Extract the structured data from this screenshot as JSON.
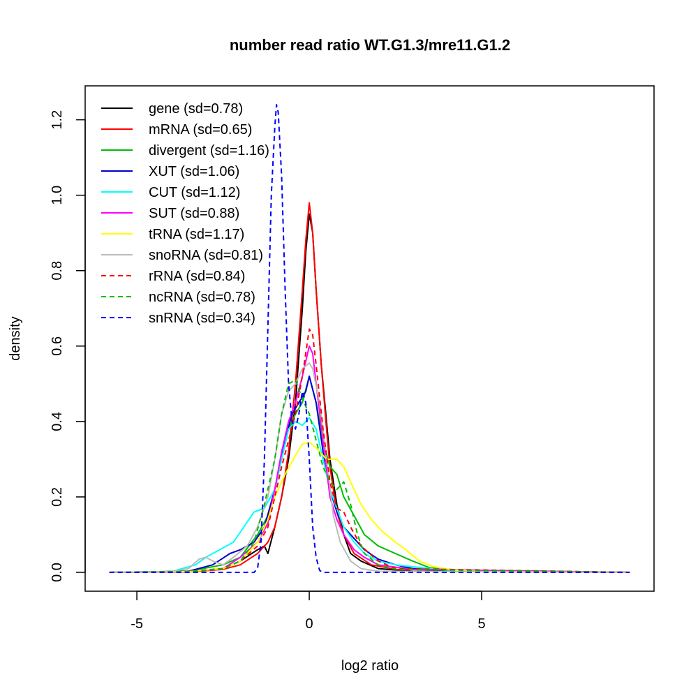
{
  "chart_data": {
    "type": "line",
    "title": "number read ratio WT.G1.3/mre11.G1.2",
    "xlabel": "log2 ratio",
    "ylabel": "density",
    "xlim": [
      -6.5,
      10
    ],
    "ylim": [
      -0.05,
      1.29
    ],
    "xticks": [
      -5,
      0,
      5
    ],
    "xtick_labels": [
      "-5",
      "0",
      "5"
    ],
    "yticks": [
      0,
      0.2,
      0.4,
      0.6,
      0.8,
      1.0,
      1.2
    ],
    "ytick_labels": [
      "0.0",
      "0.2",
      "0.4",
      "0.6",
      "0.8",
      "1.0",
      "1.2"
    ],
    "legend_position": "top-left",
    "series": [
      {
        "name": "gene (sd=0.78)",
        "color": "#000000",
        "dash": "solid",
        "points": [
          [
            -5.8,
            0
          ],
          [
            -3.5,
            0.002
          ],
          [
            -2.5,
            0.01
          ],
          [
            -2,
            0.03
          ],
          [
            -1.5,
            0.06
          ],
          [
            -1.3,
            0.07
          ],
          [
            -1.2,
            0.05
          ],
          [
            -1,
            0.12
          ],
          [
            -0.8,
            0.2
          ],
          [
            -0.6,
            0.3
          ],
          [
            -0.4,
            0.45
          ],
          [
            -0.2,
            0.7
          ],
          [
            -0.1,
            0.85
          ],
          [
            0,
            0.95
          ],
          [
            0.1,
            0.9
          ],
          [
            0.2,
            0.75
          ],
          [
            0.35,
            0.55
          ],
          [
            0.5,
            0.4
          ],
          [
            0.6,
            0.3
          ],
          [
            0.8,
            0.18
          ],
          [
            1,
            0.1
          ],
          [
            1.2,
            0.05
          ],
          [
            1.5,
            0.03
          ],
          [
            2,
            0.01
          ],
          [
            3,
            0.003
          ],
          [
            9.3,
            0
          ]
        ]
      },
      {
        "name": "mRNA (sd=0.65)",
        "color": "#ff0000",
        "dash": "solid",
        "points": [
          [
            -5.8,
            0
          ],
          [
            -3.5,
            0.001
          ],
          [
            -2.5,
            0.008
          ],
          [
            -2,
            0.02
          ],
          [
            -1.5,
            0.05
          ],
          [
            -1.2,
            0.08
          ],
          [
            -1,
            0.12
          ],
          [
            -0.8,
            0.2
          ],
          [
            -0.6,
            0.32
          ],
          [
            -0.4,
            0.5
          ],
          [
            -0.2,
            0.75
          ],
          [
            -0.1,
            0.88
          ],
          [
            0,
            0.98
          ],
          [
            0.1,
            0.9
          ],
          [
            0.2,
            0.75
          ],
          [
            0.35,
            0.55
          ],
          [
            0.5,
            0.38
          ],
          [
            0.6,
            0.28
          ],
          [
            0.8,
            0.16
          ],
          [
            1,
            0.1
          ],
          [
            1.3,
            0.05
          ],
          [
            1.8,
            0.02
          ],
          [
            2.5,
            0.008
          ],
          [
            9.3,
            0
          ]
        ]
      },
      {
        "name": "divergent (sd=1.16)",
        "color": "#00bb00",
        "dash": "solid",
        "points": [
          [
            -5.8,
            0
          ],
          [
            -3.5,
            0.003
          ],
          [
            -2.5,
            0.02
          ],
          [
            -2,
            0.04
          ],
          [
            -1.5,
            0.1
          ],
          [
            -1.2,
            0.15
          ],
          [
            -1,
            0.22
          ],
          [
            -0.8,
            0.3
          ],
          [
            -0.6,
            0.38
          ],
          [
            -0.4,
            0.42
          ],
          [
            -0.2,
            0.45
          ],
          [
            0,
            0.52
          ],
          [
            0.2,
            0.45
          ],
          [
            0.4,
            0.35
          ],
          [
            0.6,
            0.28
          ],
          [
            0.8,
            0.26
          ],
          [
            1,
            0.2
          ],
          [
            1.3,
            0.15
          ],
          [
            1.6,
            0.1
          ],
          [
            2,
            0.07
          ],
          [
            2.5,
            0.05
          ],
          [
            3,
            0.03
          ],
          [
            3.5,
            0.012
          ],
          [
            4.5,
            0.005
          ],
          [
            9.3,
            0
          ]
        ]
      },
      {
        "name": "XUT (sd=1.06)",
        "color": "#0000cc",
        "dash": "solid",
        "points": [
          [
            -5.8,
            0
          ],
          [
            -3.5,
            0.003
          ],
          [
            -2.8,
            0.02
          ],
          [
            -2.3,
            0.05
          ],
          [
            -2,
            0.06
          ],
          [
            -1.6,
            0.08
          ],
          [
            -1.3,
            0.12
          ],
          [
            -1,
            0.22
          ],
          [
            -0.7,
            0.35
          ],
          [
            -0.5,
            0.42
          ],
          [
            -0.3,
            0.45
          ],
          [
            -0.1,
            0.48
          ],
          [
            0,
            0.52
          ],
          [
            0.2,
            0.45
          ],
          [
            0.4,
            0.32
          ],
          [
            0.6,
            0.22
          ],
          [
            0.8,
            0.16
          ],
          [
            1,
            0.12
          ],
          [
            1.3,
            0.09
          ],
          [
            1.6,
            0.06
          ],
          [
            2,
            0.035
          ],
          [
            2.5,
            0.02
          ],
          [
            3,
            0.01
          ],
          [
            4,
            0.005
          ],
          [
            9.3,
            0
          ]
        ]
      },
      {
        "name": "CUT (sd=1.12)",
        "color": "#00ffff",
        "dash": "solid",
        "points": [
          [
            -5.8,
            0
          ],
          [
            -4,
            0.002
          ],
          [
            -3.3,
            0.02
          ],
          [
            -3,
            0.04
          ],
          [
            -2.6,
            0.06
          ],
          [
            -2.2,
            0.08
          ],
          [
            -1.9,
            0.12
          ],
          [
            -1.6,
            0.16
          ],
          [
            -1.3,
            0.17
          ],
          [
            -1,
            0.22
          ],
          [
            -0.8,
            0.3
          ],
          [
            -0.6,
            0.38
          ],
          [
            -0.4,
            0.4
          ],
          [
            -0.2,
            0.39
          ],
          [
            0,
            0.41
          ],
          [
            0.2,
            0.38
          ],
          [
            0.4,
            0.3
          ],
          [
            0.6,
            0.22
          ],
          [
            0.8,
            0.17
          ],
          [
            1,
            0.12
          ],
          [
            1.3,
            0.08
          ],
          [
            1.6,
            0.05
          ],
          [
            2,
            0.03
          ],
          [
            2.5,
            0.02
          ],
          [
            3,
            0.015
          ],
          [
            4,
            0.005
          ],
          [
            9.3,
            0
          ]
        ]
      },
      {
        "name": "SUT (sd=0.88)",
        "color": "#ff00ff",
        "dash": "solid",
        "points": [
          [
            -5.8,
            0
          ],
          [
            -3.5,
            0.002
          ],
          [
            -2.5,
            0.01
          ],
          [
            -2,
            0.04
          ],
          [
            -1.5,
            0.08
          ],
          [
            -1.2,
            0.13
          ],
          [
            -1,
            0.22
          ],
          [
            -0.8,
            0.32
          ],
          [
            -0.6,
            0.4
          ],
          [
            -0.4,
            0.45
          ],
          [
            -0.2,
            0.52
          ],
          [
            0,
            0.6
          ],
          [
            0.1,
            0.58
          ],
          [
            0.2,
            0.5
          ],
          [
            0.4,
            0.35
          ],
          [
            0.6,
            0.2
          ],
          [
            0.8,
            0.14
          ],
          [
            1,
            0.1
          ],
          [
            1.3,
            0.06
          ],
          [
            1.6,
            0.04
          ],
          [
            2,
            0.02
          ],
          [
            3,
            0.008
          ],
          [
            9.3,
            0
          ]
        ]
      },
      {
        "name": "tRNA (sd=1.17)",
        "color": "#ffff00",
        "dash": "solid",
        "points": [
          [
            -5.8,
            0
          ],
          [
            -3.5,
            0.002
          ],
          [
            -2.5,
            0.01
          ],
          [
            -2,
            0.03
          ],
          [
            -1.5,
            0.08
          ],
          [
            -1.2,
            0.14
          ],
          [
            -1,
            0.2
          ],
          [
            -0.7,
            0.26
          ],
          [
            -0.4,
            0.31
          ],
          [
            -0.2,
            0.34
          ],
          [
            0,
            0.345
          ],
          [
            0.2,
            0.33
          ],
          [
            0.5,
            0.3
          ],
          [
            0.8,
            0.3
          ],
          [
            1,
            0.28
          ],
          [
            1.2,
            0.24
          ],
          [
            1.5,
            0.18
          ],
          [
            1.8,
            0.14
          ],
          [
            2.1,
            0.11
          ],
          [
            2.5,
            0.08
          ],
          [
            2.8,
            0.06
          ],
          [
            3.2,
            0.03
          ],
          [
            3.6,
            0.015
          ],
          [
            4.2,
            0.006
          ],
          [
            5,
            0.002
          ],
          [
            9.3,
            0
          ]
        ]
      },
      {
        "name": "snoRNA (sd=0.81)",
        "color": "#bbbbbb",
        "dash": "solid",
        "points": [
          [
            -5.8,
            0
          ],
          [
            -4,
            0.002
          ],
          [
            -3.5,
            0.01
          ],
          [
            -3.2,
            0.035
          ],
          [
            -3,
            0.04
          ],
          [
            -2.8,
            0.03
          ],
          [
            -2.5,
            0.02
          ],
          [
            -2.2,
            0.04
          ],
          [
            -1.8,
            0.07
          ],
          [
            -1.5,
            0.12
          ],
          [
            -1.2,
            0.2
          ],
          [
            -1,
            0.3
          ],
          [
            -0.8,
            0.42
          ],
          [
            -0.6,
            0.48
          ],
          [
            -0.4,
            0.5
          ],
          [
            -0.2,
            0.54
          ],
          [
            0,
            0.555
          ],
          [
            0.1,
            0.54
          ],
          [
            0.3,
            0.45
          ],
          [
            0.5,
            0.3
          ],
          [
            0.7,
            0.15
          ],
          [
            0.9,
            0.08
          ],
          [
            1.2,
            0.03
          ],
          [
            1.5,
            0.01
          ],
          [
            2,
            0.003
          ],
          [
            9.3,
            0
          ]
        ]
      },
      {
        "name": "rRNA (sd=0.84)",
        "color": "#ff0000",
        "dash": "dashed",
        "points": [
          [
            -5.8,
            0
          ],
          [
            -3.5,
            0.002
          ],
          [
            -2.5,
            0.01
          ],
          [
            -2,
            0.03
          ],
          [
            -1.5,
            0.07
          ],
          [
            -1.2,
            0.12
          ],
          [
            -1,
            0.2
          ],
          [
            -0.8,
            0.28
          ],
          [
            -0.6,
            0.35
          ],
          [
            -0.4,
            0.42
          ],
          [
            -0.2,
            0.52
          ],
          [
            0,
            0.645
          ],
          [
            0.1,
            0.63
          ],
          [
            0.2,
            0.55
          ],
          [
            0.4,
            0.38
          ],
          [
            0.6,
            0.24
          ],
          [
            0.8,
            0.17
          ],
          [
            1,
            0.16
          ],
          [
            1.2,
            0.12
          ],
          [
            1.5,
            0.07
          ],
          [
            2,
            0.03
          ],
          [
            2.5,
            0.01
          ],
          [
            9.3,
            0
          ]
        ]
      },
      {
        "name": "ncRNA (sd=0.78)",
        "color": "#00bb00",
        "dash": "dashed",
        "points": [
          [
            -5.8,
            0
          ],
          [
            -3.5,
            0.002
          ],
          [
            -2.5,
            0.01
          ],
          [
            -2,
            0.03
          ],
          [
            -1.6,
            0.08
          ],
          [
            -1.3,
            0.18
          ],
          [
            -1,
            0.3
          ],
          [
            -0.8,
            0.42
          ],
          [
            -0.6,
            0.5
          ],
          [
            -0.4,
            0.51
          ],
          [
            -0.2,
            0.46
          ],
          [
            0,
            0.42
          ],
          [
            0.2,
            0.35
          ],
          [
            0.4,
            0.28
          ],
          [
            0.6,
            0.24
          ],
          [
            0.8,
            0.22
          ],
          [
            1,
            0.24
          ],
          [
            1.2,
            0.18
          ],
          [
            1.4,
            0.1
          ],
          [
            1.6,
            0.05
          ],
          [
            2,
            0.02
          ],
          [
            2.5,
            0.008
          ],
          [
            9.3,
            0
          ]
        ]
      },
      {
        "name": "snRNA (sd=0.34)",
        "color": "#0000ff",
        "dash": "dashed",
        "points": [
          [
            -5.8,
            0
          ],
          [
            -1.6,
            0
          ],
          [
            -1.5,
            0.01
          ],
          [
            -1.4,
            0.08
          ],
          [
            -1.3,
            0.3
          ],
          [
            -1.2,
            0.65
          ],
          [
            -1.1,
            1.0
          ],
          [
            -1,
            1.18
          ],
          [
            -0.95,
            1.24
          ],
          [
            -0.9,
            1.22
          ],
          [
            -0.8,
            1.05
          ],
          [
            -0.7,
            0.75
          ],
          [
            -0.6,
            0.5
          ],
          [
            -0.5,
            0.4
          ],
          [
            -0.4,
            0.38
          ],
          [
            -0.3,
            0.42
          ],
          [
            -0.2,
            0.48
          ],
          [
            -0.1,
            0.45
          ],
          [
            0,
            0.3
          ],
          [
            0.1,
            0.12
          ],
          [
            0.2,
            0.04
          ],
          [
            0.3,
            0.005
          ],
          [
            0.4,
            0
          ],
          [
            9.3,
            0
          ]
        ]
      }
    ]
  }
}
